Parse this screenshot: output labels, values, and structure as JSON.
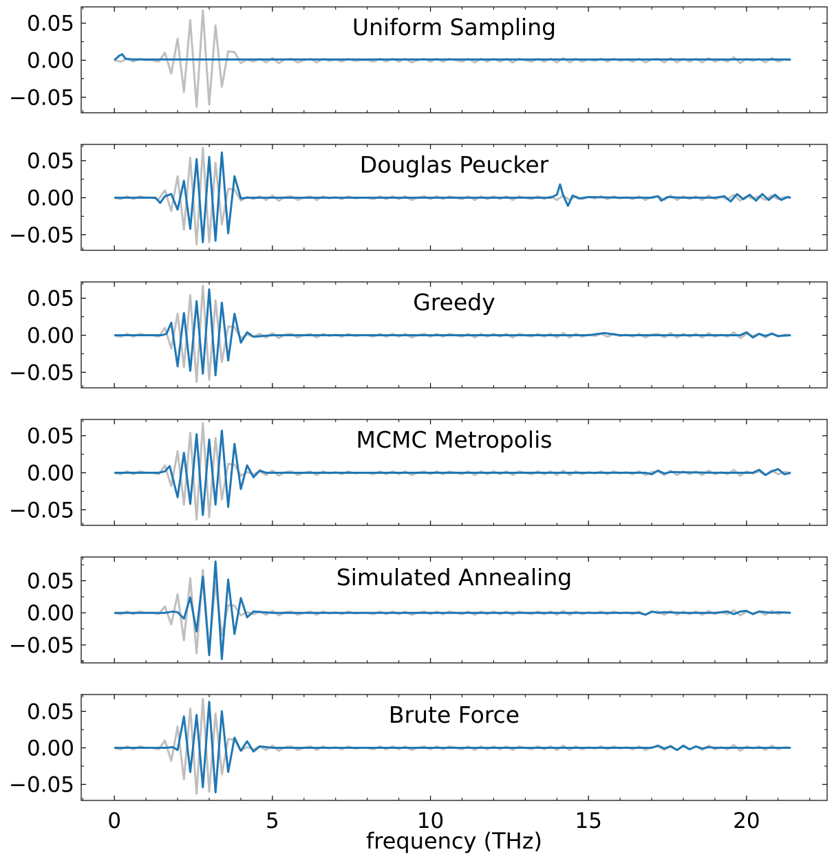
{
  "chart_data": {
    "type": "line",
    "xlabel": "frequency (THz)",
    "xlim": [
      -1.05,
      22.55
    ],
    "xticks": [
      0,
      5,
      10,
      15,
      20
    ],
    "x_tick_labels": [
      "0",
      "5",
      "10",
      "15",
      "20"
    ],
    "reference_color": "#bfbfbf",
    "series_color": "#1f77b4",
    "reference_description_x": "x values in THz, shared by all panels",
    "reference_x": [
      0.0,
      0.2,
      0.4,
      0.6,
      0.8,
      1.0,
      1.2,
      1.4,
      1.6,
      1.8,
      2.0,
      2.2,
      2.4,
      2.6,
      2.8,
      3.0,
      3.2,
      3.4,
      3.6,
      3.8,
      4.0,
      4.2,
      4.4,
      4.6,
      4.8,
      5.0,
      5.2,
      5.4,
      5.6,
      5.8,
      6.0,
      6.2,
      6.4,
      6.6,
      6.8,
      7.0,
      7.2,
      7.4,
      7.6,
      7.8,
      8.0,
      8.2,
      8.4,
      8.6,
      8.8,
      9.0,
      9.2,
      9.4,
      9.6,
      9.8,
      10.0,
      10.2,
      10.4,
      10.6,
      10.8,
      11.0,
      11.2,
      11.4,
      11.6,
      11.8,
      12.0,
      12.2,
      12.4,
      12.6,
      12.8,
      13.0,
      13.2,
      13.4,
      13.6,
      13.8,
      14.0,
      14.2,
      14.4,
      14.6,
      14.8,
      15.0,
      15.2,
      15.4,
      15.6,
      15.8,
      16.0,
      16.2,
      16.4,
      16.6,
      16.8,
      17.0,
      17.2,
      17.4,
      17.6,
      17.8,
      18.0,
      18.2,
      18.4,
      18.6,
      18.8,
      19.0,
      19.2,
      19.4,
      19.6,
      19.8,
      20.0,
      20.2,
      20.4,
      20.6,
      20.8,
      21.0,
      21.2,
      21.4
    ],
    "reference_y": [
      0.0,
      -0.002,
      0.002,
      -0.002,
      0.002,
      0.0,
      0.0,
      -0.002,
      0.01,
      -0.018,
      0.029,
      -0.043,
      0.054,
      -0.063,
      0.067,
      -0.06,
      0.047,
      -0.036,
      0.012,
      0.011,
      -0.004,
      0.001,
      -0.002,
      0.002,
      -0.003,
      0.003,
      -0.004,
      0.001,
      0.002,
      -0.003,
      0.0,
      0.002,
      -0.003,
      0.002,
      -0.001,
      0.001,
      -0.002,
      0.002,
      -0.001,
      0.0,
      0.0,
      -0.002,
      0.002,
      -0.002,
      0.002,
      -0.002,
      0.002,
      -0.003,
      0.0,
      0.002,
      -0.002,
      0.002,
      -0.002,
      0.002,
      0.0,
      -0.002,
      0.002,
      -0.003,
      0.002,
      -0.002,
      0.002,
      -0.002,
      0.002,
      -0.003,
      0.002,
      0.0,
      -0.002,
      0.002,
      -0.002,
      0.002,
      -0.003,
      0.003,
      -0.003,
      0.002,
      -0.002,
      0.001,
      -0.001,
      0.002,
      -0.002,
      0.002,
      -0.001,
      0.001,
      -0.002,
      0.002,
      -0.003,
      0.001,
      0.002,
      -0.003,
      0.003,
      -0.003,
      0.002,
      -0.002,
      0.002,
      -0.003,
      0.003,
      -0.002,
      0.001,
      -0.002,
      0.004,
      -0.004,
      0.002,
      -0.001,
      0.002,
      -0.003,
      0.003,
      -0.002,
      0.001,
      0.0
    ],
    "panels": [
      {
        "title": "Uniform Sampling",
        "ylim": [
          -0.071,
          0.072
        ],
        "yticks": [
          -0.05,
          0.0,
          0.05
        ],
        "y_tick_labels": [
          "−0.05",
          "0.00",
          "0.05"
        ],
        "series": {
          "x": [
            0.0,
            0.15,
            0.25,
            0.35,
            0.6,
            1.0,
            2.0,
            4.0,
            6.0,
            8.0,
            10.0,
            12.0,
            14.0,
            16.0,
            18.0,
            20.0,
            21.4
          ],
          "y": [
            0.0,
            0.006,
            0.008,
            0.002,
            0.001,
            0.001,
            0.001,
            0.001,
            0.001,
            0.001,
            0.001,
            0.001,
            0.001,
            0.001,
            0.001,
            0.001,
            0.001
          ]
        }
      },
      {
        "title": "Douglas Peucker",
        "ylim": [
          -0.071,
          0.072
        ],
        "yticks": [
          -0.05,
          0.0,
          0.05
        ],
        "y_tick_labels": [
          "−0.05",
          "0.00",
          "0.05"
        ],
        "series": {
          "x": [
            0.0,
            0.5,
            1.0,
            1.3,
            1.45,
            1.6,
            1.8,
            2.0,
            2.2,
            2.4,
            2.6,
            2.8,
            3.0,
            3.2,
            3.4,
            3.6,
            3.8,
            4.0,
            4.2,
            4.6,
            6.0,
            8.0,
            10.0,
            12.0,
            13.0,
            13.8,
            14.0,
            14.1,
            14.2,
            14.35,
            14.5,
            14.7,
            15.0,
            16.0,
            17.0,
            17.2,
            17.3,
            17.5,
            18.0,
            19.0,
            19.3,
            19.5,
            19.7,
            19.9,
            20.1,
            20.3,
            20.5,
            20.7,
            20.9,
            21.1,
            21.3,
            21.4
          ],
          "y": [
            0.0,
            0.0,
            0.0,
            0.0,
            -0.007,
            0.002,
            0.005,
            -0.016,
            0.023,
            -0.042,
            0.052,
            -0.06,
            0.055,
            -0.058,
            0.061,
            -0.048,
            0.029,
            -0.001,
            0.0,
            0.0,
            0.0,
            0.0,
            0.0,
            0.0,
            0.0,
            0.0,
            0.004,
            0.018,
            0.003,
            -0.011,
            0.003,
            -0.001,
            0.001,
            0.0,
            0.0,
            0.002,
            -0.004,
            0.001,
            0.0,
            0.0,
            0.002,
            -0.005,
            0.005,
            -0.002,
            0.004,
            -0.004,
            0.005,
            -0.003,
            0.004,
            -0.003,
            0.001,
            0.0
          ]
        }
      },
      {
        "title": "Greedy",
        "ylim": [
          -0.071,
          0.072
        ],
        "yticks": [
          -0.05,
          0.0,
          0.05
        ],
        "y_tick_labels": [
          "−0.05",
          "0.00",
          "0.05"
        ],
        "series": {
          "x": [
            0.0,
            0.5,
            1.0,
            1.5,
            1.65,
            1.8,
            2.0,
            2.2,
            2.4,
            2.6,
            2.8,
            3.0,
            3.2,
            3.4,
            3.6,
            3.8,
            4.0,
            4.2,
            4.4,
            5.0,
            8.0,
            12.0,
            15.0,
            15.5,
            16.0,
            18.0,
            19.0,
            19.5,
            19.8,
            20.0,
            20.2,
            20.4,
            20.6,
            20.8,
            21.0,
            21.4
          ],
          "y": [
            0.0,
            0.0,
            0.0,
            0.0,
            0.002,
            0.017,
            -0.042,
            0.03,
            -0.048,
            0.046,
            -0.052,
            0.062,
            -0.054,
            0.044,
            -0.034,
            0.029,
            -0.01,
            0.004,
            -0.002,
            0.0,
            0.0,
            0.0,
            0.0,
            0.003,
            0.0,
            0.0,
            0.0,
            0.0,
            0.0,
            0.004,
            -0.003,
            0.002,
            -0.001,
            0.002,
            -0.001,
            0.0
          ]
        }
      },
      {
        "title": "MCMC Metropolis",
        "ylim": [
          -0.071,
          0.072
        ],
        "yticks": [
          -0.05,
          0.0,
          0.05
        ],
        "y_tick_labels": [
          "−0.05",
          "0.00",
          "0.05"
        ],
        "series": {
          "x": [
            0.0,
            0.5,
            1.0,
            1.4,
            1.6,
            1.75,
            2.0,
            2.2,
            2.4,
            2.6,
            2.8,
            3.0,
            3.2,
            3.4,
            3.6,
            3.8,
            4.0,
            4.2,
            4.4,
            4.6,
            4.8,
            6.0,
            10.0,
            14.0,
            16.8,
            17.0,
            17.2,
            17.4,
            17.6,
            19.0,
            20.2,
            20.4,
            20.6,
            20.8,
            21.0,
            21.2,
            21.4
          ],
          "y": [
            0.0,
            0.0,
            0.0,
            0.0,
            0.002,
            0.009,
            -0.033,
            0.027,
            -0.042,
            0.052,
            -0.057,
            0.045,
            -0.043,
            0.057,
            -0.046,
            0.039,
            -0.022,
            0.01,
            -0.006,
            0.003,
            0.0,
            0.0,
            0.0,
            0.0,
            0.0,
            -0.002,
            0.003,
            -0.001,
            0.001,
            0.0,
            0.0,
            0.004,
            -0.003,
            0.002,
            0.005,
            -0.002,
            0.0
          ]
        }
      },
      {
        "title": "Simulated Annealing",
        "ylim": [
          -0.078,
          0.087
        ],
        "yticks": [
          -0.05,
          0.0,
          0.05
        ],
        "y_tick_labels": [
          "−0.05",
          "0.00",
          "0.05"
        ],
        "series": {
          "x": [
            0.0,
            0.5,
            1.0,
            1.6,
            1.85,
            2.0,
            2.2,
            2.4,
            2.6,
            2.8,
            3.0,
            3.2,
            3.4,
            3.6,
            3.8,
            4.0,
            4.2,
            4.4,
            5.0,
            8.0,
            12.0,
            16.0,
            16.6,
            16.8,
            17.0,
            17.2,
            17.4,
            18.0,
            19.0,
            19.4,
            19.6,
            19.8,
            20.0,
            20.2,
            20.4,
            20.8,
            21.0,
            21.4
          ],
          "y": [
            0.0,
            0.0,
            0.0,
            0.0,
            0.002,
            0.001,
            -0.009,
            0.024,
            -0.029,
            0.056,
            -0.066,
            0.08,
            -0.072,
            0.052,
            -0.033,
            0.023,
            -0.007,
            0.002,
            0.0,
            0.0,
            0.0,
            0.0,
            0.0,
            -0.003,
            0.002,
            0.0,
            0.001,
            0.0,
            0.0,
            0.002,
            -0.002,
            0.002,
            0.003,
            -0.002,
            0.002,
            0.0,
            0.001,
            0.0
          ]
        }
      },
      {
        "title": "Brute Force",
        "ylim": [
          -0.072,
          0.073
        ],
        "yticks": [
          -0.05,
          0.0,
          0.05
        ],
        "y_tick_labels": [
          "−0.05",
          "0.00",
          "0.05"
        ],
        "series": {
          "x": [
            0.0,
            0.5,
            1.0,
            1.6,
            1.85,
            2.0,
            2.2,
            2.4,
            2.6,
            2.8,
            3.0,
            3.2,
            3.4,
            3.6,
            3.8,
            4.0,
            4.2,
            4.4,
            4.6,
            5.0,
            8.0,
            12.0,
            16.0,
            17.0,
            17.2,
            17.4,
            17.6,
            17.8,
            18.0,
            18.2,
            18.4,
            18.6,
            18.8,
            19.0,
            20.0,
            21.4
          ],
          "y": [
            0.0,
            0.0,
            0.0,
            0.0,
            0.001,
            -0.003,
            0.043,
            -0.033,
            0.045,
            -0.054,
            0.063,
            -0.061,
            0.05,
            -0.033,
            0.014,
            -0.004,
            0.009,
            -0.005,
            0.002,
            0.0,
            0.0,
            0.0,
            0.0,
            0.0,
            0.003,
            -0.001,
            0.002,
            -0.003,
            0.003,
            -0.002,
            0.002,
            -0.001,
            0.001,
            0.0,
            0.0,
            0.0
          ]
        }
      }
    ]
  }
}
